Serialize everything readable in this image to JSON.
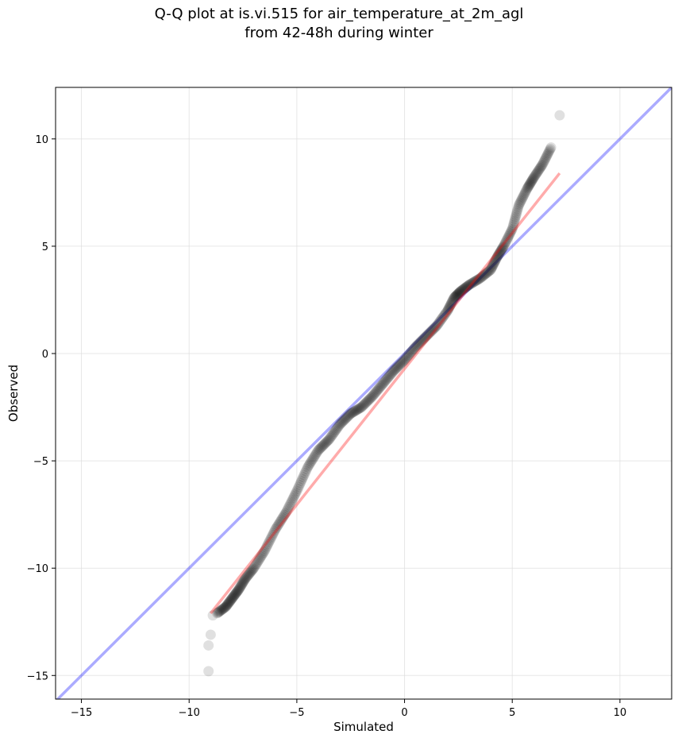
{
  "chart_data": {
    "type": "scatter",
    "title": "Q-Q plot at is.vi.515 for air_temperature_at_2m_agl",
    "subtitle": "from 42-48h during winter",
    "xlabel": "Simulated",
    "ylabel": "Observed",
    "xlim": [
      -16.2,
      12.4
    ],
    "ylim": [
      -16.1,
      12.4
    ],
    "xticks": [
      -15,
      -10,
      -5,
      0,
      5,
      10
    ],
    "yticks": [
      -15,
      -10,
      -5,
      0,
      5,
      10
    ],
    "xtick_labels": [
      "−15",
      "−10",
      "−5",
      "0",
      "5",
      "10"
    ],
    "ytick_labels": [
      "−15",
      "−10",
      "−5",
      "0",
      "5",
      "10"
    ],
    "grid": true,
    "colors": {
      "points": "#000000",
      "reference_line": "#0000ff",
      "fit_line": "#ff0000",
      "grid": "#dddddd"
    },
    "reference_line": {
      "slope": 1,
      "intercept": 0
    },
    "fit_line": {
      "x": [
        -9.0,
        7.2
      ],
      "y": [
        -12.1,
        8.4
      ]
    },
    "quantile_curve": {
      "x": [
        -8.7,
        -8.3,
        -8.0,
        -7.7,
        -7.4,
        -7.0,
        -6.5,
        -6.0,
        -5.5,
        -5.0,
        -4.5,
        -4.0,
        -3.5,
        -3.0,
        -2.5,
        -2.0,
        -1.5,
        -1.0,
        -0.5,
        0.0,
        0.5,
        1.0,
        1.5,
        2.0,
        2.3,
        2.6,
        3.0,
        3.5,
        4.0,
        4.3,
        4.6,
        5.0,
        5.3,
        5.7,
        6.0,
        6.4,
        6.8
      ],
      "y": [
        -12.1,
        -11.8,
        -11.4,
        -11.0,
        -10.5,
        -10.0,
        -9.2,
        -8.2,
        -7.4,
        -6.4,
        -5.3,
        -4.5,
        -4.0,
        -3.3,
        -2.8,
        -2.5,
        -2.0,
        -1.4,
        -0.8,
        -0.3,
        0.3,
        0.8,
        1.3,
        2.0,
        2.6,
        2.9,
        3.2,
        3.5,
        3.9,
        4.5,
        5.0,
        5.8,
        6.9,
        7.7,
        8.2,
        8.8,
        9.6
      ]
    },
    "outliers": [
      {
        "x": 7.2,
        "y": 11.1
      },
      {
        "x": -9.1,
        "y": -14.8
      },
      {
        "x": -9.1,
        "y": -13.6
      },
      {
        "x": -9.0,
        "y": -13.1
      },
      {
        "x": -8.9,
        "y": -12.2
      }
    ]
  }
}
